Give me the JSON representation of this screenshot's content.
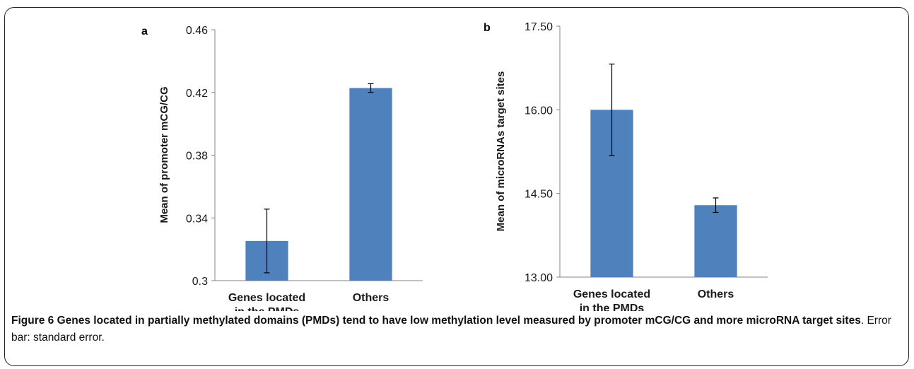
{
  "chart_data": [
    {
      "panel": "a",
      "type": "bar",
      "categories": [
        [
          "Genes located",
          "in the PMDs"
        ],
        [
          "Others"
        ]
      ],
      "values": [
        0.3253,
        0.4228
      ],
      "errors": [
        0.0203,
        0.0028
      ],
      "ylabel": "Mean of promoter mCG/CG",
      "yticks": [
        "0.46",
        "0.42",
        "0.38",
        "0.34",
        "0.3"
      ],
      "ylim": [
        0.3,
        0.46
      ],
      "color": "#4f81bd"
    },
    {
      "panel": "b",
      "type": "bar",
      "categories": [
        [
          "Genes located",
          "in the PMDs"
        ],
        [
          "Others"
        ]
      ],
      "values": [
        16.0,
        14.29
      ],
      "errors": [
        0.82,
        0.13
      ],
      "ylabel": "Mean of microRNAs  target sites",
      "yticks": [
        "17.50",
        "16.00",
        "14.50",
        "13.00"
      ],
      "ylim": [
        13.0,
        17.5
      ],
      "color": "#4f81bd"
    }
  ],
  "caption": {
    "label": "Figure 6",
    "bold_text": "Genes located in partially methylated domains (PMDs) tend to have low methylation level measured by promoter mCG/CG and more microRNA target sites",
    "rest": ". Error bar: standard error."
  }
}
